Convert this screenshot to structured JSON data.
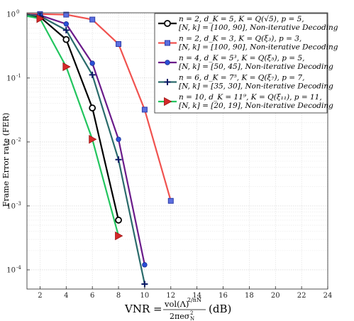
{
  "chart_data": {
    "type": "line",
    "xlabel": {
      "prefix": "VNR = ",
      "numerator": "vol(Λ)",
      "numerator_exp": "2/nN",
      "denominator": "2πeσ",
      "denominator_sub": "N",
      "denominator_sup": "2",
      "unit": "(dB)"
    },
    "ylabel": "Frame Error rate (FER)",
    "xlim": [
      1,
      24
    ],
    "ylim_log10": [
      -4.3,
      0.02
    ],
    "yscale": "log",
    "grid": true,
    "legend_position": "top-right",
    "x_ticks": [
      2,
      4,
      6,
      8,
      10,
      12,
      14,
      16,
      18,
      20,
      22,
      24
    ],
    "y_ticks": [
      {
        "base": "10",
        "exp": "0",
        "value": 1
      },
      {
        "base": "10",
        "exp": "-1",
        "value": 0.1
      },
      {
        "base": "10",
        "exp": "-2",
        "value": 0.01
      },
      {
        "base": "10",
        "exp": "-3",
        "value": 0.001
      },
      {
        "base": "10",
        "exp": "-4",
        "value": 0.0001
      }
    ],
    "series": [
      {
        "legend_line1": "n = 2, d_K = 5, K = Q(√5), p = 5,",
        "legend_line2": "[N, k] = [100, 90], Non-iterative Decoding",
        "color": "#000000",
        "marker": "circle",
        "x": [
          1,
          2,
          4,
          6,
          8
        ],
        "y": [
          0.97,
          0.9,
          0.4,
          0.034,
          0.0006
        ]
      },
      {
        "legend_line1": "n = 2, d_K = 3, K = Q(ξ₃), p = 3,",
        "legend_line2": "[N, k] = [100, 90], Non-iterative Decoding",
        "color": "#f0524f",
        "marker": "square",
        "x": [
          1,
          2,
          4,
          6,
          8,
          10,
          12
        ],
        "y": [
          1,
          1,
          0.98,
          0.82,
          0.34,
          0.032,
          0.0012
        ]
      },
      {
        "legend_line1": "n = 4, d_K = 5³, K = Q(ξ₅), p = 5,",
        "legend_line2": "[N, k] = [50, 45], Non-iterative Decoding",
        "color": "#6a1b8a",
        "marker": "dot",
        "x": [
          1,
          2,
          4,
          6,
          8,
          10
        ],
        "y": [
          0.99,
          0.96,
          0.7,
          0.17,
          0.011,
          0.00012
        ]
      },
      {
        "legend_line1": "n = 6, d_K = 7⁵, K = Q(ξ₇), p = 7,",
        "legend_line2": "[N, k] = [35, 30], Non-iterative Decoding",
        "color": "#2a6b6b",
        "marker": "plus",
        "x": [
          1,
          2,
          4,
          6,
          8,
          10
        ],
        "y": [
          0.98,
          0.93,
          0.56,
          0.112,
          0.0053,
          6e-05
        ]
      },
      {
        "legend_line1": "n = 10, d_K = 11⁹, K = Q(ξ₁₁), p = 11,",
        "legend_line2": "[N, k] = [20, 19], Non-iterative Decoding",
        "color": "#22c55e",
        "marker": "triangle",
        "x": [
          1,
          2,
          4,
          6,
          8
        ],
        "y": [
          0.93,
          0.85,
          0.15,
          0.011,
          0.00034
        ]
      }
    ]
  }
}
